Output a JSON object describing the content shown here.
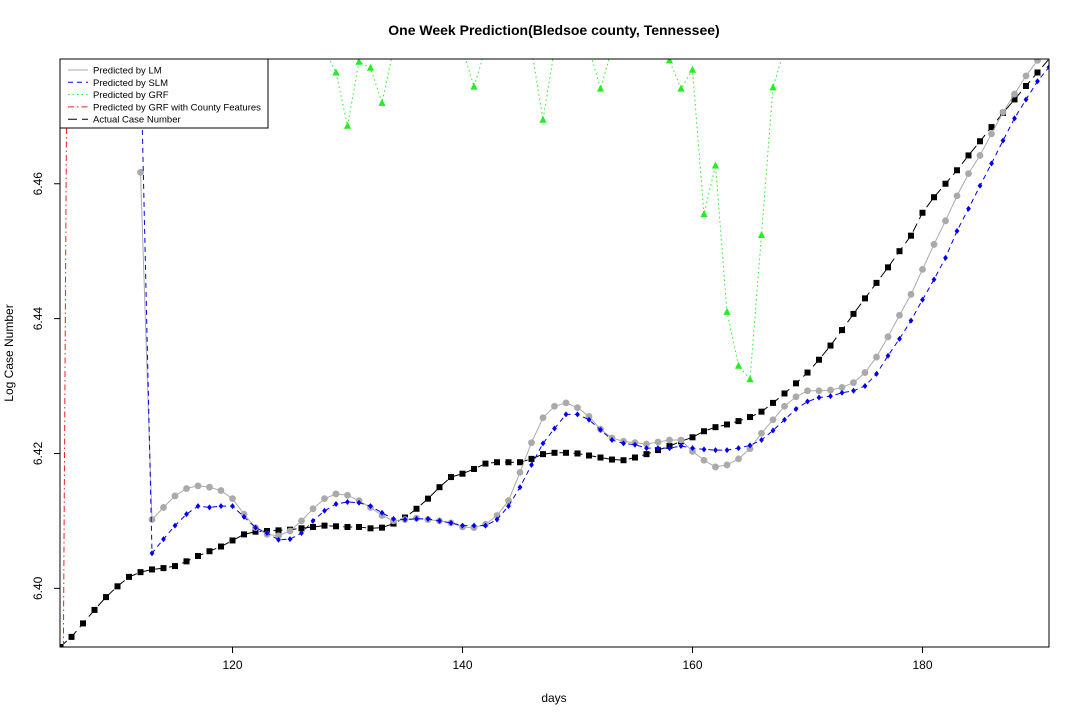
{
  "chart_data": {
    "type": "line",
    "title": "One Week Prediction(Bledsoe county, Tennessee)",
    "xlabel": "days",
    "ylabel": "Log Case Number",
    "xlim": [
      105,
      191
    ],
    "ylim": [
      6.3913,
      6.4785
    ],
    "xticks": [
      120,
      140,
      160,
      180
    ],
    "yticks": [
      6.4,
      6.42,
      6.44,
      6.46
    ],
    "ytick_labels": [
      "6.40",
      "6.42",
      "6.44",
      "6.46"
    ],
    "grid": false,
    "legend_position": "top-left",
    "series": [
      {
        "name": "Predicted by LM",
        "color": "#aaaaaa",
        "line_style": "solid",
        "marker": "circle",
        "x": [
          112,
          113,
          114,
          115,
          116,
          117,
          118,
          119,
          120,
          121,
          122,
          123,
          124,
          125,
          126,
          127,
          128,
          129,
          130,
          131,
          132,
          133,
          134,
          135,
          136,
          137,
          138,
          139,
          140,
          141,
          142,
          143,
          144,
          145,
          146,
          147,
          148,
          149,
          150,
          151,
          152,
          153,
          154,
          155,
          156,
          157,
          158,
          159,
          160,
          161,
          162,
          163,
          164,
          165,
          166,
          167,
          168,
          169,
          170,
          171,
          172,
          173,
          174,
          175,
          176,
          177,
          178,
          179,
          180,
          181,
          182,
          183,
          184,
          185,
          186,
          187,
          188,
          189,
          190,
          191
        ],
        "values": [
          6.4617,
          6.4102,
          6.412,
          6.4137,
          6.4148,
          6.4152,
          6.415,
          6.4145,
          6.4133,
          6.411,
          6.409,
          6.408,
          6.4078,
          6.4085,
          6.41,
          6.4118,
          6.4133,
          6.414,
          6.4138,
          6.413,
          6.412,
          6.4108,
          6.41,
          6.4102,
          6.4104,
          6.4102,
          6.41,
          6.4097,
          6.4091,
          6.409,
          6.4095,
          6.4108,
          6.413,
          6.4172,
          6.4216,
          6.4253,
          6.427,
          6.4275,
          6.4268,
          6.4255,
          6.4236,
          6.4223,
          6.4218,
          6.4216,
          6.4214,
          6.4217,
          6.422,
          6.422,
          6.4203,
          6.419,
          6.418,
          6.4183,
          6.4192,
          6.4207,
          6.423,
          6.425,
          6.427,
          6.4284,
          6.4293,
          6.4293,
          6.4294,
          6.4298,
          6.4305,
          6.432,
          6.4343,
          6.4373,
          6.4405,
          6.4436,
          6.4473,
          6.451,
          6.4545,
          6.4582,
          6.4615,
          6.4642,
          6.4674,
          6.4706,
          6.4733,
          6.476,
          6.4783,
          6.48
        ]
      },
      {
        "name": "Predicted by SLM",
        "color": "#0000ee",
        "line_style": "dashed",
        "marker": "diamond",
        "x": [
          112,
          113,
          114,
          115,
          116,
          117,
          118,
          119,
          120,
          121,
          122,
          123,
          124,
          125,
          126,
          127,
          128,
          129,
          130,
          131,
          132,
          133,
          134,
          135,
          136,
          137,
          138,
          139,
          140,
          141,
          142,
          143,
          144,
          145,
          146,
          147,
          148,
          149,
          150,
          151,
          152,
          153,
          154,
          155,
          156,
          157,
          158,
          159,
          160,
          161,
          162,
          163,
          164,
          165,
          166,
          167,
          168,
          169,
          170,
          171,
          172,
          173,
          174,
          175,
          176,
          177,
          178,
          179,
          180,
          181,
          182,
          183,
          184,
          185,
          186,
          187,
          188,
          189,
          190,
          191
        ],
        "values": [
          6.48,
          6.4052,
          6.4073,
          6.4093,
          6.411,
          6.4122,
          6.412,
          6.4122,
          6.4122,
          6.4106,
          6.409,
          6.4082,
          6.4072,
          6.4073,
          6.4082,
          6.41,
          6.4115,
          6.4125,
          6.4128,
          6.4127,
          6.4122,
          6.4112,
          6.4103,
          6.4102,
          6.4103,
          6.4103,
          6.41,
          6.4097,
          6.4093,
          6.4093,
          6.4093,
          6.4102,
          6.4122,
          6.415,
          6.4183,
          6.4215,
          6.4237,
          6.4258,
          6.4258,
          6.425,
          6.4235,
          6.422,
          6.4215,
          6.4213,
          6.4208,
          6.4208,
          6.4208,
          6.4211,
          6.4208,
          6.4206,
          6.4205,
          6.4205,
          6.4208,
          6.4212,
          6.422,
          6.4234,
          6.425,
          6.4266,
          6.4277,
          6.4283,
          6.4285,
          6.429,
          6.4293,
          6.43,
          6.4318,
          6.4345,
          6.437,
          6.4397,
          6.4428,
          6.4458,
          6.449,
          6.453,
          6.4563,
          6.4597,
          6.463,
          6.4664,
          6.4697,
          6.4725,
          6.4752,
          6.4773
        ]
      },
      {
        "name": "Predicted by GRF",
        "color": "#22ee22",
        "line_style": "dotted",
        "marker": "triangle",
        "x": [
          128,
          129,
          130,
          131,
          132,
          133,
          134,
          135,
          136,
          140,
          141,
          142,
          146,
          147,
          148,
          151,
          152,
          153,
          157,
          158,
          159,
          160,
          161,
          162,
          163,
          164,
          165,
          166,
          167,
          168
        ],
        "values": [
          6.48,
          6.4765,
          6.4686,
          6.4781,
          6.4772,
          6.472,
          6.48,
          6.48,
          6.48,
          6.48,
          6.4744,
          6.48,
          6.48,
          6.4695,
          6.48,
          6.48,
          6.4741,
          6.48,
          6.48,
          6.4783,
          6.4741,
          6.4769,
          6.4555,
          6.4627,
          6.441,
          6.433,
          6.431,
          6.4524,
          6.4743,
          6.48
        ]
      },
      {
        "name": "Predicted by GRF with County Features",
        "color": "#ee2222",
        "line_style": "dashdot",
        "marker": "none",
        "x": [
          105.3,
          105.6,
          106.5
        ],
        "values": [
          6.3913,
          6.48,
          6.48
        ]
      },
      {
        "name": "Actual Case Number",
        "color": "#000000",
        "line_style": "longdash",
        "marker": "square",
        "x": [
          105,
          106,
          107,
          108,
          109,
          110,
          111,
          112,
          113,
          114,
          115,
          116,
          117,
          118,
          119,
          120,
          121,
          122,
          123,
          124,
          125,
          126,
          127,
          128,
          129,
          130,
          131,
          132,
          133,
          134,
          135,
          136,
          137,
          138,
          139,
          140,
          141,
          142,
          143,
          144,
          145,
          146,
          147,
          148,
          149,
          150,
          151,
          152,
          153,
          154,
          155,
          156,
          157,
          158,
          159,
          160,
          161,
          162,
          163,
          164,
          165,
          166,
          167,
          168,
          169,
          170,
          171,
          172,
          173,
          174,
          175,
          176,
          177,
          178,
          179,
          180,
          181,
          182,
          183,
          184,
          185,
          186,
          187,
          188,
          189,
          190,
          191
        ],
        "values": [
          6.3913,
          6.3928,
          6.3948,
          6.3968,
          6.3987,
          6.4003,
          6.4017,
          6.4024,
          6.4028,
          6.403,
          6.4033,
          6.404,
          6.4048,
          6.4055,
          6.4062,
          6.4071,
          6.408,
          6.4084,
          6.4085,
          6.4086,
          6.4087,
          6.4089,
          6.4091,
          6.4093,
          6.4092,
          6.4091,
          6.4091,
          6.4089,
          6.409,
          6.4096,
          6.4105,
          6.4118,
          6.4133,
          6.415,
          6.4165,
          6.417,
          6.4177,
          6.4185,
          6.4187,
          6.4187,
          6.4187,
          6.4192,
          6.4199,
          6.4201,
          6.4201,
          6.42,
          6.4197,
          6.4194,
          6.4191,
          6.419,
          6.4194,
          6.4199,
          6.4205,
          6.4211,
          6.4218,
          6.4224,
          6.4233,
          6.4239,
          6.4243,
          6.4248,
          6.4254,
          6.4262,
          6.4275,
          6.4289,
          6.4304,
          6.432,
          6.4339,
          6.436,
          6.4383,
          6.4407,
          6.443,
          6.4453,
          6.4476,
          6.45,
          6.4523,
          6.4557,
          6.458,
          6.46,
          6.462,
          6.4642,
          6.4663,
          6.4684,
          6.4705,
          6.4725,
          6.4745,
          6.4765,
          6.4785
        ]
      }
    ]
  }
}
